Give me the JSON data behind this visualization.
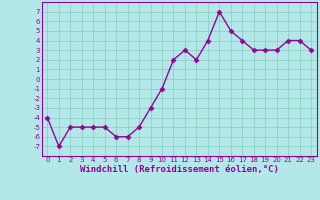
{
  "x": [
    0,
    1,
    2,
    3,
    4,
    5,
    6,
    7,
    8,
    9,
    10,
    11,
    12,
    13,
    14,
    15,
    16,
    17,
    18,
    19,
    20,
    21,
    22,
    23
  ],
  "y": [
    -4,
    -7,
    -5,
    -5,
    -5,
    -5,
    -6,
    -6,
    -5,
    -3,
    -1,
    2,
    3,
    2,
    4,
    7,
    5,
    4,
    3,
    3,
    3,
    4,
    4,
    3
  ],
  "color": "#990099",
  "background_color": "#b3e8e8",
  "grid_color": "#88ccbb",
  "xlabel": "Windchill (Refroidissement éolien,°C)",
  "ylim": [
    -8,
    8
  ],
  "xlim": [
    -0.5,
    23.5
  ],
  "yticks": [
    -7,
    -6,
    -5,
    -4,
    -3,
    -2,
    -1,
    0,
    1,
    2,
    3,
    4,
    5,
    6,
    7
  ],
  "xticks": [
    0,
    1,
    2,
    3,
    4,
    5,
    6,
    7,
    8,
    9,
    10,
    11,
    12,
    13,
    14,
    15,
    16,
    17,
    18,
    19,
    20,
    21,
    22,
    23
  ],
  "marker": "D",
  "markersize": 2.5,
  "linewidth": 1.0,
  "xlabel_fontsize": 6.5,
  "tick_fontsize": 5.0,
  "spine_color": "#990099"
}
